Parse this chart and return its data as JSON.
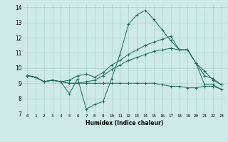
{
  "title": "",
  "xlabel": "Humidex (Indice chaleur)",
  "bg_color": "#ceeae8",
  "grid_color": "#aacfcc",
  "line_color": "#1a6b5e",
  "xlim": [
    -0.5,
    23.5
  ],
  "ylim": [
    7,
    14.2
  ],
  "yticks": [
    7,
    8,
    9,
    10,
    11,
    12,
    13,
    14
  ],
  "xticks": [
    0,
    1,
    2,
    3,
    4,
    5,
    6,
    7,
    8,
    9,
    10,
    11,
    12,
    13,
    14,
    15,
    16,
    17,
    18,
    19,
    20,
    21,
    22,
    23
  ],
  "series": [
    [
      9.5,
      9.4,
      9.1,
      9.2,
      9.1,
      8.3,
      9.3,
      7.3,
      7.6,
      7.8,
      9.3,
      10.9,
      12.9,
      13.5,
      13.8,
      13.2,
      12.5,
      11.8,
      11.2,
      11.2,
      10.3,
      8.9,
      8.9,
      8.6
    ],
    [
      9.5,
      9.4,
      9.1,
      9.2,
      9.1,
      9.2,
      9.5,
      9.6,
      9.4,
      9.7,
      10.2,
      10.5,
      10.9,
      11.2,
      11.5,
      11.7,
      11.9,
      12.1,
      11.2,
      11.2,
      10.3,
      9.8,
      9.2,
      8.9
    ],
    [
      9.5,
      9.4,
      9.1,
      9.2,
      9.1,
      9.0,
      9.0,
      9.0,
      9.0,
      9.0,
      9.0,
      9.0,
      9.0,
      9.0,
      9.0,
      9.0,
      8.9,
      8.8,
      8.8,
      8.7,
      8.7,
      8.8,
      8.8,
      8.6
    ],
    [
      9.5,
      9.4,
      9.1,
      9.2,
      9.1,
      9.0,
      9.0,
      9.1,
      9.2,
      9.5,
      9.9,
      10.2,
      10.5,
      10.7,
      10.9,
      11.1,
      11.2,
      11.3,
      11.2,
      11.2,
      10.3,
      9.5,
      9.3,
      8.9
    ]
  ]
}
